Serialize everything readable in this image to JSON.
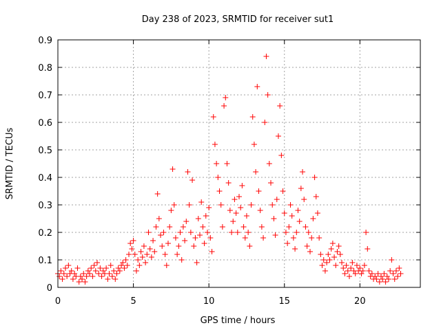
{
  "chart_data": {
    "type": "scatter",
    "title": "Day 238 of 2023, SRMTID for receiver sut1",
    "xlabel": "GPS time / hours",
    "ylabel": "SRMTID / TECUs",
    "xlim": [
      0,
      24
    ],
    "ylim": [
      0,
      0.9
    ],
    "xticks": [
      0,
      5,
      10,
      15,
      20
    ],
    "yticks": [
      0,
      0.1,
      0.2,
      0.3,
      0.4,
      0.5,
      0.6,
      0.7,
      0.8,
      0.9
    ],
    "xtick_labels": [
      "0",
      "5",
      "10",
      "15",
      "20"
    ],
    "ytick_labels": [
      "0",
      "0.1",
      "0.2",
      "0.3",
      "0.4",
      "0.5",
      "0.6",
      "0.7",
      "0.8",
      "0.9"
    ],
    "grid": true,
    "marker": "+",
    "series": [
      {
        "name": "SRMTID",
        "color": "#ff0000",
        "points": [
          [
            0.0,
            0.05
          ],
          [
            0.1,
            0.04
          ],
          [
            0.2,
            0.06
          ],
          [
            0.3,
            0.03
          ],
          [
            0.4,
            0.05
          ],
          [
            0.5,
            0.07
          ],
          [
            0.6,
            0.04
          ],
          [
            0.7,
            0.08
          ],
          [
            0.8,
            0.05
          ],
          [
            0.9,
            0.06
          ],
          [
            1.0,
            0.03
          ],
          [
            1.1,
            0.05
          ],
          [
            1.2,
            0.04
          ],
          [
            1.3,
            0.07
          ],
          [
            1.4,
            0.02
          ],
          [
            1.5,
            0.04
          ],
          [
            1.6,
            0.03
          ],
          [
            1.7,
            0.05
          ],
          [
            1.8,
            0.02
          ],
          [
            1.9,
            0.04
          ],
          [
            2.0,
            0.06
          ],
          [
            2.1,
            0.05
          ],
          [
            2.2,
            0.07
          ],
          [
            2.3,
            0.04
          ],
          [
            2.4,
            0.08
          ],
          [
            2.5,
            0.06
          ],
          [
            2.6,
            0.09
          ],
          [
            2.7,
            0.05
          ],
          [
            2.8,
            0.07
          ],
          [
            2.9,
            0.04
          ],
          [
            3.0,
            0.06
          ],
          [
            3.1,
            0.05
          ],
          [
            3.2,
            0.07
          ],
          [
            3.3,
            0.03
          ],
          [
            3.4,
            0.05
          ],
          [
            3.5,
            0.08
          ],
          [
            3.6,
            0.04
          ],
          [
            3.7,
            0.06
          ],
          [
            3.8,
            0.03
          ],
          [
            3.9,
            0.05
          ],
          [
            4.0,
            0.07
          ],
          [
            4.1,
            0.06
          ],
          [
            4.2,
            0.08
          ],
          [
            4.3,
            0.09
          ],
          [
            4.4,
            0.07
          ],
          [
            4.5,
            0.1
          ],
          [
            4.6,
            0.08
          ],
          [
            4.7,
            0.12
          ],
          [
            4.8,
            0.16
          ],
          [
            4.9,
            0.14
          ],
          [
            5.0,
            0.17
          ],
          [
            5.1,
            0.12
          ],
          [
            5.2,
            0.06
          ],
          [
            5.3,
            0.1
          ],
          [
            5.4,
            0.08
          ],
          [
            5.5,
            0.13
          ],
          [
            5.6,
            0.11
          ],
          [
            5.7,
            0.15
          ],
          [
            5.8,
            0.09
          ],
          [
            5.9,
            0.12
          ],
          [
            6.0,
            0.2
          ],
          [
            6.1,
            0.14
          ],
          [
            6.2,
            0.11
          ],
          [
            6.3,
            0.17
          ],
          [
            6.4,
            0.13
          ],
          [
            6.5,
            0.22
          ],
          [
            6.6,
            0.34
          ],
          [
            6.7,
            0.25
          ],
          [
            6.8,
            0.19
          ],
          [
            6.9,
            0.15
          ],
          [
            7.0,
            0.2
          ],
          [
            7.1,
            0.12
          ],
          [
            7.2,
            0.08
          ],
          [
            7.3,
            0.16
          ],
          [
            7.4,
            0.22
          ],
          [
            7.5,
            0.28
          ],
          [
            7.6,
            0.43
          ],
          [
            7.7,
            0.3
          ],
          [
            7.8,
            0.18
          ],
          [
            7.9,
            0.12
          ],
          [
            8.0,
            0.15
          ],
          [
            8.1,
            0.2
          ],
          [
            8.2,
            0.1
          ],
          [
            8.3,
            0.22
          ],
          [
            8.4,
            0.17
          ],
          [
            8.5,
            0.24
          ],
          [
            8.6,
            0.42
          ],
          [
            8.7,
            0.3
          ],
          [
            8.8,
            0.2
          ],
          [
            8.9,
            0.39
          ],
          [
            9.0,
            0.15
          ],
          [
            9.1,
            0.18
          ],
          [
            9.2,
            0.09
          ],
          [
            9.3,
            0.25
          ],
          [
            9.4,
            0.19
          ],
          [
            9.5,
            0.31
          ],
          [
            9.6,
            0.22
          ],
          [
            9.7,
            0.16
          ],
          [
            9.8,
            0.26
          ],
          [
            9.9,
            0.2
          ],
          [
            10.0,
            0.29
          ],
          [
            10.1,
            0.18
          ],
          [
            10.2,
            0.13
          ],
          [
            10.3,
            0.62
          ],
          [
            10.4,
            0.52
          ],
          [
            10.5,
            0.45
          ],
          [
            10.6,
            0.4
          ],
          [
            10.7,
            0.35
          ],
          [
            10.8,
            0.3
          ],
          [
            10.9,
            0.22
          ],
          [
            11.0,
            0.66
          ],
          [
            11.1,
            0.69
          ],
          [
            11.2,
            0.45
          ],
          [
            11.3,
            0.38
          ],
          [
            11.4,
            0.28
          ],
          [
            11.5,
            0.2
          ],
          [
            11.6,
            0.24
          ],
          [
            11.7,
            0.32
          ],
          [
            11.8,
            0.27
          ],
          [
            11.9,
            0.2
          ],
          [
            12.0,
            0.33
          ],
          [
            12.1,
            0.29
          ],
          [
            12.2,
            0.37
          ],
          [
            12.3,
            0.22
          ],
          [
            12.4,
            0.18
          ],
          [
            12.5,
            0.26
          ],
          [
            12.6,
            0.2
          ],
          [
            12.7,
            0.15
          ],
          [
            12.8,
            0.3
          ],
          [
            12.9,
            0.62
          ],
          [
            13.0,
            0.52
          ],
          [
            13.1,
            0.42
          ],
          [
            13.2,
            0.73
          ],
          [
            13.3,
            0.35
          ],
          [
            13.4,
            0.28
          ],
          [
            13.5,
            0.22
          ],
          [
            13.6,
            0.18
          ],
          [
            13.7,
            0.6
          ],
          [
            13.8,
            0.84
          ],
          [
            13.9,
            0.7
          ],
          [
            14.0,
            0.45
          ],
          [
            14.1,
            0.38
          ],
          [
            14.2,
            0.3
          ],
          [
            14.3,
            0.25
          ],
          [
            14.4,
            0.19
          ],
          [
            14.5,
            0.32
          ],
          [
            14.6,
            0.55
          ],
          [
            14.7,
            0.66
          ],
          [
            14.8,
            0.48
          ],
          [
            14.9,
            0.35
          ],
          [
            15.0,
            0.27
          ],
          [
            15.1,
            0.2
          ],
          [
            15.2,
            0.16
          ],
          [
            15.3,
            0.22
          ],
          [
            15.4,
            0.3
          ],
          [
            15.5,
            0.26
          ],
          [
            15.6,
            0.18
          ],
          [
            15.7,
            0.14
          ],
          [
            15.8,
            0.2
          ],
          [
            15.9,
            0.28
          ],
          [
            16.0,
            0.24
          ],
          [
            16.1,
            0.36
          ],
          [
            16.2,
            0.42
          ],
          [
            16.3,
            0.32
          ],
          [
            16.4,
            0.22
          ],
          [
            16.5,
            0.15
          ],
          [
            16.6,
            0.2
          ],
          [
            16.7,
            0.13
          ],
          [
            16.8,
            0.18
          ],
          [
            16.9,
            0.25
          ],
          [
            17.0,
            0.4
          ],
          [
            17.1,
            0.33
          ],
          [
            17.2,
            0.27
          ],
          [
            17.3,
            0.18
          ],
          [
            17.4,
            0.12
          ],
          [
            17.5,
            0.08
          ],
          [
            17.6,
            0.1
          ],
          [
            17.7,
            0.06
          ],
          [
            17.8,
            0.09
          ],
          [
            17.9,
            0.12
          ],
          [
            18.0,
            0.1
          ],
          [
            18.1,
            0.14
          ],
          [
            18.2,
            0.16
          ],
          [
            18.3,
            0.11
          ],
          [
            18.4,
            0.08
          ],
          [
            18.5,
            0.13
          ],
          [
            18.6,
            0.15
          ],
          [
            18.7,
            0.12
          ],
          [
            18.8,
            0.09
          ],
          [
            18.9,
            0.07
          ],
          [
            19.0,
            0.05
          ],
          [
            19.1,
            0.08
          ],
          [
            19.2,
            0.06
          ],
          [
            19.3,
            0.04
          ],
          [
            19.4,
            0.07
          ],
          [
            19.5,
            0.09
          ],
          [
            19.6,
            0.06
          ],
          [
            19.7,
            0.05
          ],
          [
            19.8,
            0.08
          ],
          [
            19.9,
            0.06
          ],
          [
            20.0,
            0.07
          ],
          [
            20.1,
            0.05
          ],
          [
            20.2,
            0.06
          ],
          [
            20.3,
            0.08
          ],
          [
            20.4,
            0.2
          ],
          [
            20.5,
            0.14
          ],
          [
            20.6,
            0.06
          ],
          [
            20.7,
            0.04
          ],
          [
            20.8,
            0.05
          ],
          [
            20.9,
            0.03
          ],
          [
            21.0,
            0.04
          ],
          [
            21.1,
            0.03
          ],
          [
            21.2,
            0.05
          ],
          [
            21.3,
            0.02
          ],
          [
            21.4,
            0.04
          ],
          [
            21.5,
            0.03
          ],
          [
            21.6,
            0.05
          ],
          [
            21.7,
            0.02
          ],
          [
            21.8,
            0.04
          ],
          [
            21.9,
            0.03
          ],
          [
            22.0,
            0.06
          ],
          [
            22.1,
            0.1
          ],
          [
            22.2,
            0.05
          ],
          [
            22.3,
            0.03
          ],
          [
            22.4,
            0.06
          ],
          [
            22.5,
            0.04
          ],
          [
            22.6,
            0.07
          ],
          [
            22.7,
            0.05
          ]
        ]
      }
    ]
  }
}
